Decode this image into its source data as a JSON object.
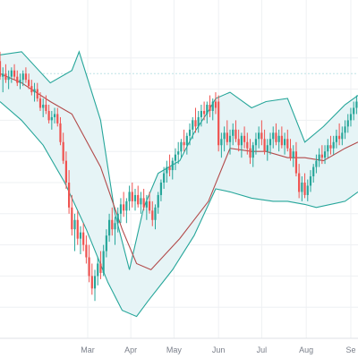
{
  "chart_data": {
    "type": "candlestick",
    "title": "",
    "xlabel": "",
    "ylabel": "",
    "grid": true,
    "legend": "none",
    "x_tick_labels": [
      {
        "label": "Mar",
        "day": 61
      },
      {
        "label": "Apr",
        "day": 91
      },
      {
        "label": "May",
        "day": 121
      },
      {
        "label": "Jun",
        "day": 152
      },
      {
        "label": "Jul",
        "day": 182
      },
      {
        "label": "Aug",
        "day": 213
      },
      {
        "label": "Se",
        "day": 244
      }
    ],
    "x_range_days": [
      0,
      249
    ],
    "y_range": [
      0,
      100
    ],
    "reference_level": 85,
    "colors": {
      "up": "#26a69a",
      "down": "#ef5350",
      "band_line": "#26a69a",
      "band_fill": "#e6f4f6",
      "middle_line": "#b24a4a",
      "grid": "#eef0f3",
      "reference": "#bfe3e6",
      "axis_text": "#7a7f8a"
    },
    "bollinger_bands": {
      "upper": [
        [
          0,
          91
        ],
        [
          15,
          92
        ],
        [
          35,
          82
        ],
        [
          50,
          86
        ],
        [
          55,
          92
        ],
        [
          70,
          70
        ],
        [
          80,
          40
        ],
        [
          90,
          22
        ],
        [
          100,
          42
        ],
        [
          110,
          53
        ],
        [
          125,
          57
        ],
        [
          135,
          66
        ],
        [
          145,
          73
        ],
        [
          150,
          77
        ],
        [
          160,
          79
        ],
        [
          175,
          74
        ],
        [
          185,
          76
        ],
        [
          200,
          77
        ],
        [
          212,
          63
        ],
        [
          225,
          68
        ],
        [
          240,
          75
        ],
        [
          249,
          78
        ]
      ],
      "middle": [
        [
          0,
          85
        ],
        [
          15,
          82
        ],
        [
          35,
          76
        ],
        [
          50,
          72
        ],
        [
          70,
          55
        ],
        [
          85,
          35
        ],
        [
          95,
          24
        ],
        [
          105,
          22
        ],
        [
          125,
          32
        ],
        [
          145,
          44
        ],
        [
          160,
          61
        ],
        [
          175,
          60
        ],
        [
          185,
          60
        ],
        [
          200,
          58
        ],
        [
          212,
          58
        ],
        [
          225,
          57
        ],
        [
          240,
          61
        ],
        [
          249,
          63
        ]
      ],
      "lower": [
        [
          0,
          76
        ],
        [
          15,
          70
        ],
        [
          30,
          62
        ],
        [
          45,
          50
        ],
        [
          60,
          35
        ],
        [
          75,
          18
        ],
        [
          85,
          9
        ],
        [
          95,
          7
        ],
        [
          103,
          12
        ],
        [
          120,
          22
        ],
        [
          135,
          33
        ],
        [
          150,
          48
        ],
        [
          160,
          47
        ],
        [
          175,
          45
        ],
        [
          190,
          44
        ],
        [
          200,
          44
        ],
        [
          212,
          43
        ],
        [
          220,
          42
        ],
        [
          240,
          44
        ],
        [
          249,
          47
        ]
      ]
    },
    "ohlc": [
      {
        "d": 0,
        "o": 89,
        "h": 92,
        "l": 83,
        "c": 84
      },
      {
        "d": 2,
        "o": 84,
        "h": 87,
        "l": 79,
        "c": 85
      },
      {
        "d": 4,
        "o": 85,
        "h": 88,
        "l": 82,
        "c": 83
      },
      {
        "d": 6,
        "o": 83,
        "h": 86,
        "l": 80,
        "c": 84
      },
      {
        "d": 8,
        "o": 84,
        "h": 87,
        "l": 82,
        "c": 86
      },
      {
        "d": 10,
        "o": 86,
        "h": 88,
        "l": 83,
        "c": 84
      },
      {
        "d": 12,
        "o": 84,
        "h": 86,
        "l": 81,
        "c": 82
      },
      {
        "d": 14,
        "o": 82,
        "h": 85,
        "l": 80,
        "c": 83
      },
      {
        "d": 16,
        "o": 83,
        "h": 86,
        "l": 81,
        "c": 85
      },
      {
        "d": 18,
        "o": 85,
        "h": 87,
        "l": 82,
        "c": 83
      },
      {
        "d": 20,
        "o": 83,
        "h": 85,
        "l": 80,
        "c": 81
      },
      {
        "d": 22,
        "o": 81,
        "h": 83,
        "l": 78,
        "c": 79
      },
      {
        "d": 24,
        "o": 79,
        "h": 82,
        "l": 76,
        "c": 80
      },
      {
        "d": 26,
        "o": 80,
        "h": 82,
        "l": 76,
        "c": 77
      },
      {
        "d": 28,
        "o": 77,
        "h": 79,
        "l": 73,
        "c": 74
      },
      {
        "d": 30,
        "o": 74,
        "h": 77,
        "l": 71,
        "c": 75
      },
      {
        "d": 32,
        "o": 75,
        "h": 78,
        "l": 72,
        "c": 73
      },
      {
        "d": 34,
        "o": 73,
        "h": 75,
        "l": 69,
        "c": 70
      },
      {
        "d": 36,
        "o": 70,
        "h": 73,
        "l": 67,
        "c": 71
      },
      {
        "d": 38,
        "o": 71,
        "h": 74,
        "l": 69,
        "c": 72
      },
      {
        "d": 40,
        "o": 72,
        "h": 74,
        "l": 68,
        "c": 69
      },
      {
        "d": 42,
        "o": 69,
        "h": 71,
        "l": 62,
        "c": 63
      },
      {
        "d": 44,
        "o": 63,
        "h": 66,
        "l": 56,
        "c": 57
      },
      {
        "d": 46,
        "o": 57,
        "h": 60,
        "l": 48,
        "c": 50
      },
      {
        "d": 48,
        "o": 50,
        "h": 54,
        "l": 40,
        "c": 42
      },
      {
        "d": 50,
        "o": 42,
        "h": 46,
        "l": 33,
        "c": 35
      },
      {
        "d": 52,
        "o": 35,
        "h": 40,
        "l": 28,
        "c": 38
      },
      {
        "d": 54,
        "o": 38,
        "h": 41,
        "l": 30,
        "c": 32
      },
      {
        "d": 56,
        "o": 32,
        "h": 36,
        "l": 27,
        "c": 34
      },
      {
        "d": 58,
        "o": 34,
        "h": 37,
        "l": 28,
        "c": 30
      },
      {
        "d": 60,
        "o": 30,
        "h": 33,
        "l": 24,
        "c": 26
      },
      {
        "d": 62,
        "o": 26,
        "h": 30,
        "l": 18,
        "c": 20
      },
      {
        "d": 64,
        "o": 20,
        "h": 24,
        "l": 14,
        "c": 16
      },
      {
        "d": 66,
        "o": 16,
        "h": 22,
        "l": 12,
        "c": 20
      },
      {
        "d": 68,
        "o": 20,
        "h": 26,
        "l": 17,
        "c": 24
      },
      {
        "d": 70,
        "o": 24,
        "h": 28,
        "l": 19,
        "c": 21
      },
      {
        "d": 72,
        "o": 21,
        "h": 30,
        "l": 20,
        "c": 28
      },
      {
        "d": 74,
        "o": 28,
        "h": 35,
        "l": 26,
        "c": 33
      },
      {
        "d": 76,
        "o": 33,
        "h": 40,
        "l": 31,
        "c": 38
      },
      {
        "d": 78,
        "o": 38,
        "h": 42,
        "l": 33,
        "c": 35
      },
      {
        "d": 80,
        "o": 35,
        "h": 39,
        "l": 30,
        "c": 37
      },
      {
        "d": 82,
        "o": 37,
        "h": 42,
        "l": 34,
        "c": 40
      },
      {
        "d": 84,
        "o": 40,
        "h": 45,
        "l": 37,
        "c": 43
      },
      {
        "d": 86,
        "o": 43,
        "h": 47,
        "l": 39,
        "c": 41
      },
      {
        "d": 88,
        "o": 41,
        "h": 45,
        "l": 37,
        "c": 44
      },
      {
        "d": 90,
        "o": 44,
        "h": 49,
        "l": 41,
        "c": 47
      },
      {
        "d": 92,
        "o": 47,
        "h": 50,
        "l": 42,
        "c": 44
      },
      {
        "d": 94,
        "o": 44,
        "h": 48,
        "l": 41,
        "c": 46
      },
      {
        "d": 96,
        "o": 46,
        "h": 49,
        "l": 42,
        "c": 43
      },
      {
        "d": 98,
        "o": 43,
        "h": 47,
        "l": 40,
        "c": 45
      },
      {
        "d": 100,
        "o": 45,
        "h": 48,
        "l": 41,
        "c": 42
      },
      {
        "d": 102,
        "o": 42,
        "h": 46,
        "l": 38,
        "c": 44
      },
      {
        "d": 104,
        "o": 44,
        "h": 47,
        "l": 40,
        "c": 41
      },
      {
        "d": 106,
        "o": 41,
        "h": 44,
        "l": 36,
        "c": 38
      },
      {
        "d": 108,
        "o": 38,
        "h": 43,
        "l": 35,
        "c": 42
      },
      {
        "d": 110,
        "o": 42,
        "h": 47,
        "l": 40,
        "c": 46
      },
      {
        "d": 112,
        "o": 46,
        "h": 51,
        "l": 44,
        "c": 50
      },
      {
        "d": 114,
        "o": 50,
        "h": 55,
        "l": 48,
        "c": 53
      },
      {
        "d": 116,
        "o": 53,
        "h": 57,
        "l": 50,
        "c": 55
      },
      {
        "d": 118,
        "o": 55,
        "h": 59,
        "l": 52,
        "c": 54
      },
      {
        "d": 120,
        "o": 54,
        "h": 58,
        "l": 51,
        "c": 57
      },
      {
        "d": 122,
        "o": 57,
        "h": 61,
        "l": 54,
        "c": 59
      },
      {
        "d": 124,
        "o": 59,
        "h": 63,
        "l": 56,
        "c": 60
      },
      {
        "d": 126,
        "o": 60,
        "h": 64,
        "l": 58,
        "c": 63
      },
      {
        "d": 128,
        "o": 63,
        "h": 67,
        "l": 60,
        "c": 62
      },
      {
        "d": 130,
        "o": 62,
        "h": 66,
        "l": 59,
        "c": 65
      },
      {
        "d": 132,
        "o": 65,
        "h": 69,
        "l": 62,
        "c": 67
      },
      {
        "d": 134,
        "o": 67,
        "h": 71,
        "l": 64,
        "c": 70
      },
      {
        "d": 136,
        "o": 70,
        "h": 74,
        "l": 66,
        "c": 68
      },
      {
        "d": 138,
        "o": 68,
        "h": 73,
        "l": 66,
        "c": 71
      },
      {
        "d": 140,
        "o": 71,
        "h": 75,
        "l": 68,
        "c": 73
      },
      {
        "d": 142,
        "o": 73,
        "h": 76,
        "l": 70,
        "c": 72
      },
      {
        "d": 144,
        "o": 72,
        "h": 76,
        "l": 69,
        "c": 75
      },
      {
        "d": 146,
        "o": 75,
        "h": 78,
        "l": 71,
        "c": 73
      },
      {
        "d": 148,
        "o": 73,
        "h": 77,
        "l": 70,
        "c": 76
      },
      {
        "d": 150,
        "o": 76,
        "h": 79,
        "l": 72,
        "c": 74
      },
      {
        "d": 152,
        "o": 76,
        "h": 78,
        "l": 60,
        "c": 62
      },
      {
        "d": 154,
        "o": 62,
        "h": 66,
        "l": 58,
        "c": 64
      },
      {
        "d": 156,
        "o": 64,
        "h": 68,
        "l": 60,
        "c": 66
      },
      {
        "d": 158,
        "o": 66,
        "h": 70,
        "l": 62,
        "c": 63
      },
      {
        "d": 160,
        "o": 63,
        "h": 67,
        "l": 59,
        "c": 65
      },
      {
        "d": 162,
        "o": 65,
        "h": 69,
        "l": 62,
        "c": 67
      },
      {
        "d": 164,
        "o": 67,
        "h": 70,
        "l": 63,
        "c": 64
      },
      {
        "d": 166,
        "o": 64,
        "h": 67,
        "l": 60,
        "c": 62
      },
      {
        "d": 168,
        "o": 62,
        "h": 66,
        "l": 58,
        "c": 65
      },
      {
        "d": 170,
        "o": 65,
        "h": 68,
        "l": 61,
        "c": 63
      },
      {
        "d": 172,
        "o": 63,
        "h": 66,
        "l": 59,
        "c": 61
      },
      {
        "d": 174,
        "o": 61,
        "h": 64,
        "l": 56,
        "c": 58
      },
      {
        "d": 176,
        "o": 58,
        "h": 63,
        "l": 55,
        "c": 62
      },
      {
        "d": 178,
        "o": 62,
        "h": 66,
        "l": 59,
        "c": 64
      },
      {
        "d": 180,
        "o": 64,
        "h": 68,
        "l": 61,
        "c": 66
      },
      {
        "d": 182,
        "o": 66,
        "h": 70,
        "l": 62,
        "c": 64
      },
      {
        "d": 184,
        "o": 64,
        "h": 67,
        "l": 59,
        "c": 60
      },
      {
        "d": 186,
        "o": 60,
        "h": 64,
        "l": 57,
        "c": 62
      },
      {
        "d": 188,
        "o": 62,
        "h": 66,
        "l": 59,
        "c": 64
      },
      {
        "d": 190,
        "o": 64,
        "h": 68,
        "l": 61,
        "c": 66
      },
      {
        "d": 192,
        "o": 66,
        "h": 69,
        "l": 62,
        "c": 63
      },
      {
        "d": 194,
        "o": 63,
        "h": 67,
        "l": 60,
        "c": 65
      },
      {
        "d": 196,
        "o": 65,
        "h": 68,
        "l": 61,
        "c": 62
      },
      {
        "d": 198,
        "o": 62,
        "h": 66,
        "l": 59,
        "c": 64
      },
      {
        "d": 200,
        "o": 64,
        "h": 67,
        "l": 60,
        "c": 61
      },
      {
        "d": 202,
        "o": 61,
        "h": 64,
        "l": 57,
        "c": 58
      },
      {
        "d": 204,
        "o": 58,
        "h": 62,
        "l": 55,
        "c": 60
      },
      {
        "d": 206,
        "o": 60,
        "h": 63,
        "l": 52,
        "c": 53
      },
      {
        "d": 208,
        "o": 53,
        "h": 56,
        "l": 45,
        "c": 47
      },
      {
        "d": 210,
        "o": 47,
        "h": 52,
        "l": 44,
        "c": 50
      },
      {
        "d": 212,
        "o": 50,
        "h": 53,
        "l": 45,
        "c": 46
      },
      {
        "d": 214,
        "o": 46,
        "h": 51,
        "l": 44,
        "c": 49
      },
      {
        "d": 216,
        "o": 49,
        "h": 54,
        "l": 47,
        "c": 52
      },
      {
        "d": 218,
        "o": 52,
        "h": 56,
        "l": 50,
        "c": 55
      },
      {
        "d": 220,
        "o": 55,
        "h": 59,
        "l": 53,
        "c": 57
      },
      {
        "d": 222,
        "o": 57,
        "h": 61,
        "l": 55,
        "c": 59
      },
      {
        "d": 224,
        "o": 59,
        "h": 62,
        "l": 56,
        "c": 58
      },
      {
        "d": 226,
        "o": 58,
        "h": 62,
        "l": 56,
        "c": 60
      },
      {
        "d": 228,
        "o": 60,
        "h": 64,
        "l": 58,
        "c": 62
      },
      {
        "d": 230,
        "o": 62,
        "h": 65,
        "l": 59,
        "c": 61
      },
      {
        "d": 232,
        "o": 61,
        "h": 65,
        "l": 59,
        "c": 63
      },
      {
        "d": 234,
        "o": 63,
        "h": 67,
        "l": 61,
        "c": 65
      },
      {
        "d": 236,
        "o": 65,
        "h": 69,
        "l": 62,
        "c": 64
      },
      {
        "d": 238,
        "o": 64,
        "h": 68,
        "l": 62,
        "c": 66
      },
      {
        "d": 240,
        "o": 66,
        "h": 70,
        "l": 64,
        "c": 68
      },
      {
        "d": 242,
        "o": 68,
        "h": 72,
        "l": 66,
        "c": 70
      },
      {
        "d": 244,
        "o": 70,
        "h": 74,
        "l": 68,
        "c": 72
      },
      {
        "d": 246,
        "o": 72,
        "h": 76,
        "l": 70,
        "c": 74
      },
      {
        "d": 248,
        "o": 74,
        "h": 78,
        "l": 72,
        "c": 76
      }
    ]
  }
}
